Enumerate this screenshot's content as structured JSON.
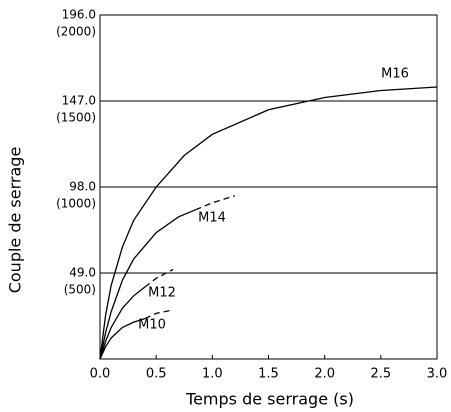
{
  "chart_data": {
    "type": "line",
    "xlabel": "Temps de serrage (s)",
    "ylabel": "Couple de serrage",
    "xlim": [
      0,
      3
    ],
    "ylim": [
      0,
      196
    ],
    "xticks": [
      {
        "value": 0,
        "label": "0.0"
      },
      {
        "value": 0.5,
        "label": "0.5"
      },
      {
        "value": 1,
        "label": "1.0"
      },
      {
        "value": 1.5,
        "label": "1.5"
      },
      {
        "value": 2,
        "label": "2.0"
      },
      {
        "value": 2.5,
        "label": "2.5"
      },
      {
        "value": 3,
        "label": "3.0"
      }
    ],
    "yticks": [
      {
        "value": 49,
        "label": "49.0"
      },
      {
        "value": 98,
        "label": "98.0"
      },
      {
        "value": 147,
        "label": "147.0"
      },
      {
        "value": 196,
        "label": "196.0"
      }
    ],
    "yticks_secondary": [
      {
        "value": 49,
        "label": "(500)"
      },
      {
        "value": 98,
        "label": "(1000)"
      },
      {
        "value": 147,
        "label": "(1500)"
      },
      {
        "value": 196,
        "label": "(2000)"
      }
    ],
    "grid": true,
    "series": [
      {
        "name": "M16",
        "color": "#000000",
        "x": [
          0,
          0.05,
          0.1,
          0.2,
          0.3,
          0.5,
          0.75,
          1.0,
          1.5,
          2.0,
          2.5,
          3.0
        ],
        "values": [
          0,
          25,
          42,
          64,
          79,
          98,
          116,
          128,
          142,
          149,
          153,
          155
        ]
      },
      {
        "name": "M14",
        "color": "#000000",
        "x": [
          0,
          0.05,
          0.1,
          0.2,
          0.3,
          0.5,
          0.7,
          0.85
        ],
        "values": [
          0,
          15,
          27,
          45,
          57,
          72,
          81,
          85
        ],
        "projected_x": [
          0.85,
          1.0,
          1.2
        ],
        "projected_values": [
          85,
          89,
          93
        ]
      },
      {
        "name": "M12",
        "color": "#000000",
        "x": [
          0,
          0.05,
          0.1,
          0.2,
          0.3,
          0.4
        ],
        "values": [
          0,
          10,
          18,
          29,
          36,
          41
        ],
        "projected_x": [
          0.4,
          0.5,
          0.65
        ],
        "projected_values": [
          41,
          46,
          51
        ]
      },
      {
        "name": "M10",
        "color": "#000000",
        "x": [
          0,
          0.05,
          0.1,
          0.2,
          0.3,
          0.4
        ],
        "values": [
          0,
          7,
          12,
          18,
          21,
          23
        ],
        "projected_x": [
          0.4,
          0.5,
          0.65
        ],
        "projected_values": [
          23,
          26,
          28
        ]
      }
    ]
  }
}
